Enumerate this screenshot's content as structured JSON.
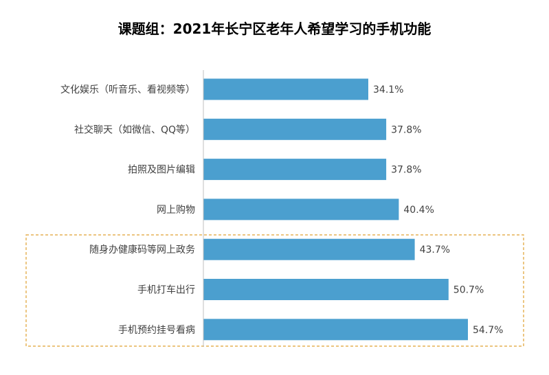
{
  "chart_data": {
    "type": "bar",
    "orientation": "horizontal",
    "title": "课题组：2021年长宁区老年人希望学习的手机功能",
    "categories": [
      "文化娱乐（听音乐、看视频等）",
      "社交聊天（如微信、QQ等）",
      "拍照及图片编辑",
      "网上购物",
      "随身办健康码等网上政务",
      "手机打车出行",
      "手机预约挂号看病"
    ],
    "values": [
      34.1,
      37.8,
      37.8,
      40.4,
      43.7,
      50.7,
      54.7
    ],
    "value_labels": [
      "34.1%",
      "37.8%",
      "37.8%",
      "40.4%",
      "43.7%",
      "50.7%",
      "54.7%"
    ],
    "unit": "%",
    "xlim": [
      0,
      60
    ],
    "grid": false,
    "legend": "none",
    "bar_color": "#4b9fcf",
    "highlight": {
      "categories": [
        "随身办健康码等网上政务",
        "手机打车出行",
        "手机预约挂号看病"
      ],
      "style": "dashed box",
      "color": "#e0a030"
    }
  }
}
